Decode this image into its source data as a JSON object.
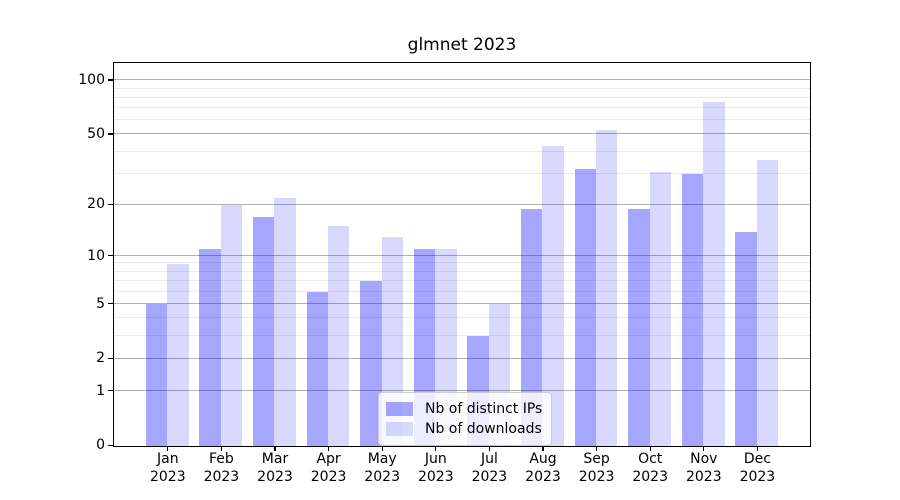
{
  "title": "glmnet 2023",
  "chart_data": {
    "type": "bar",
    "title": "glmnet 2023",
    "xlabel": "",
    "ylabel": "",
    "y_scale": "log1p",
    "ylim": [
      0,
      123
    ],
    "grid": true,
    "legend_position": "lower center-left",
    "categories": [
      "Jan",
      "Feb",
      "Mar",
      "Apr",
      "May",
      "Jun",
      "Jul",
      "Aug",
      "Sep",
      "Oct",
      "Nov",
      "Dec"
    ],
    "year": "2023",
    "y_major_ticks": [
      0,
      1,
      2,
      5,
      10,
      20,
      50,
      100
    ],
    "y_minor_ticks": [
      3,
      4,
      6,
      7,
      8,
      9,
      30,
      40,
      60,
      70,
      80,
      90
    ],
    "series": [
      {
        "name": "Nb of distinct IPs",
        "color": "rgba(0,0,255,0.35)",
        "values": [
          5,
          11,
          17,
          6,
          7,
          11,
          3,
          19,
          32,
          19,
          30,
          14
        ]
      },
      {
        "name": "Nb of downloads",
        "color": "rgba(0,0,255,0.15)",
        "values": [
          9,
          20,
          22,
          15,
          13,
          11,
          5,
          43,
          53,
          31,
          76,
          36
        ]
      }
    ]
  },
  "colors": {
    "major_grid": "#b2b2b2",
    "minor_grid": "#eaeaea",
    "spine": "#000000",
    "background": "#ffffff",
    "text": "#000000",
    "bar_dark": "rgba(0,0,255,0.35)",
    "bar_light": "rgba(0,0,255,0.15)"
  }
}
